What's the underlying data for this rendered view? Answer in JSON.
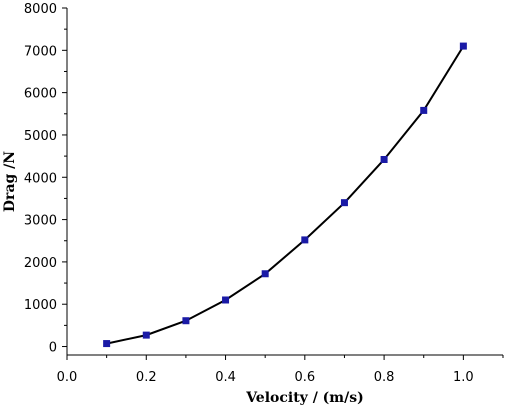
{
  "chart_data": {
    "type": "line",
    "title": "",
    "xlabel": "Velocity / (m/s)",
    "ylabel": "Drag /N",
    "xlim": [
      0.0,
      1.1
    ],
    "ylim": [
      -200,
      8000
    ],
    "x_ticks": [
      "0.0",
      "0.2",
      "0.4",
      "0.6",
      "0.8",
      "1.0"
    ],
    "y_ticks": [
      "0",
      "1000",
      "2000",
      "3000",
      "4000",
      "5000",
      "6000",
      "7000",
      "8000"
    ],
    "grid": false,
    "legend": "none",
    "line_color": "#000000",
    "marker_color": "#1a1aa6",
    "series": [
      {
        "x": [
          0.1,
          0.2,
          0.3,
          0.4,
          0.5,
          0.6,
          0.7,
          0.8,
          0.9,
          1.0
        ],
        "values": [
          70,
          270,
          610,
          1100,
          1720,
          2520,
          3400,
          4420,
          5580,
          7100
        ]
      }
    ]
  }
}
